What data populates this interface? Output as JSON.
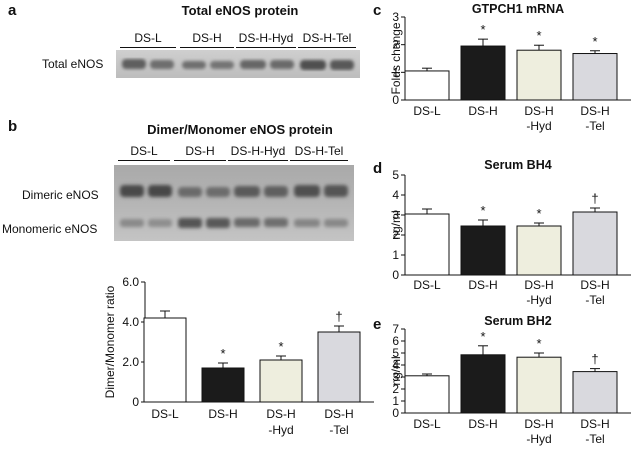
{
  "panels": {
    "a": {
      "letter": "a",
      "title": "Total eNOS protein",
      "lanes": [
        "DS-L",
        "DS-H",
        "DS-H-Hyd",
        "DS-H-Tel"
      ],
      "row_label": "Total eNOS"
    },
    "b": {
      "letter": "b",
      "title": "Dimer/Monomer eNOS protein",
      "lanes": [
        "DS-L",
        "DS-H",
        "DS-H-Hyd",
        "DS-H-Tel"
      ],
      "row_labels": [
        "Dimeric eNOS",
        "Monomeric eNOS"
      ]
    },
    "c": {
      "letter": "c"
    },
    "d": {
      "letter": "d"
    },
    "e": {
      "letter": "e"
    }
  },
  "chart_data": [
    {
      "id": "b",
      "type": "bar",
      "title": "",
      "ylabel": "Dimer/Monomer ratio",
      "categories": [
        [
          "DS-L"
        ],
        [
          "DS-H"
        ],
        [
          "DS-H",
          "-Hyd"
        ],
        [
          "DS-H",
          "-Tel"
        ]
      ],
      "values": [
        4.2,
        1.7,
        2.1,
        3.5
      ],
      "errors": [
        0.35,
        0.25,
        0.2,
        0.3
      ],
      "marks": [
        "",
        "*",
        "*",
        "†"
      ],
      "ylim": [
        0,
        6
      ],
      "yticks": [
        0,
        2,
        4,
        6
      ],
      "ytick_labels": [
        "0",
        "2.0",
        "4.0",
        "6.0"
      ],
      "fills": [
        "#ffffff",
        "#1b1b1b",
        "#eeeede",
        "#d9d9de"
      ]
    },
    {
      "id": "c",
      "type": "bar",
      "title": "GTPCH1 mRNA",
      "ylabel": "Folds change",
      "categories": [
        [
          "DS-L"
        ],
        [
          "DS-H"
        ],
        [
          "DS-H",
          "-Hyd"
        ],
        [
          "DS-H",
          "-Tel"
        ]
      ],
      "values": [
        1.05,
        1.95,
        1.8,
        1.68
      ],
      "errors": [
        0.1,
        0.25,
        0.18,
        0.1
      ],
      "marks": [
        "",
        "*",
        "*",
        "*"
      ],
      "ylim": [
        0,
        3
      ],
      "yticks": [
        0,
        1,
        2,
        3
      ],
      "ytick_labels": [
        "0",
        "1",
        "2",
        "3"
      ],
      "fills": [
        "#ffffff",
        "#1b1b1b",
        "#eeeede",
        "#d9d9de"
      ]
    },
    {
      "id": "d",
      "type": "bar",
      "title": "Serum BH4",
      "ylabel": "ng/ml",
      "categories": [
        [
          "DS-L"
        ],
        [
          "DS-H"
        ],
        [
          "DS-H",
          "-Hyd"
        ],
        [
          "DS-H",
          "-Tel"
        ]
      ],
      "values": [
        3.05,
        2.45,
        2.45,
        3.15
      ],
      "errors": [
        0.25,
        0.3,
        0.15,
        0.2
      ],
      "marks": [
        "",
        "*",
        "*",
        "†"
      ],
      "ylim": [
        0,
        5
      ],
      "yticks": [
        0,
        1,
        2,
        3,
        4,
        5
      ],
      "ytick_labels": [
        "0",
        "1",
        "2",
        "3",
        "4",
        "5"
      ],
      "fills": [
        "#ffffff",
        "#1b1b1b",
        "#eeeede",
        "#d9d9de"
      ]
    },
    {
      "id": "e",
      "type": "bar",
      "title": "Serum BH2",
      "ylabel": "ng/ml",
      "categories": [
        [
          "DS-L"
        ],
        [
          "DS-H"
        ],
        [
          "DS-H",
          "-Hyd"
        ],
        [
          "DS-H",
          "-Tel"
        ]
      ],
      "values": [
        3.1,
        4.85,
        4.65,
        3.45
      ],
      "errors": [
        0.15,
        0.75,
        0.35,
        0.25
      ],
      "marks": [
        "",
        "*",
        "*",
        "†"
      ],
      "ylim": [
        0,
        7
      ],
      "yticks": [
        0,
        1,
        2,
        3,
        4,
        5,
        6,
        7
      ],
      "ytick_labels": [
        "0",
        "1",
        "2",
        "3",
        "4",
        "5",
        "6",
        "7"
      ],
      "fills": [
        "#ffffff",
        "#1b1b1b",
        "#eeeede",
        "#d9d9de"
      ]
    }
  ]
}
